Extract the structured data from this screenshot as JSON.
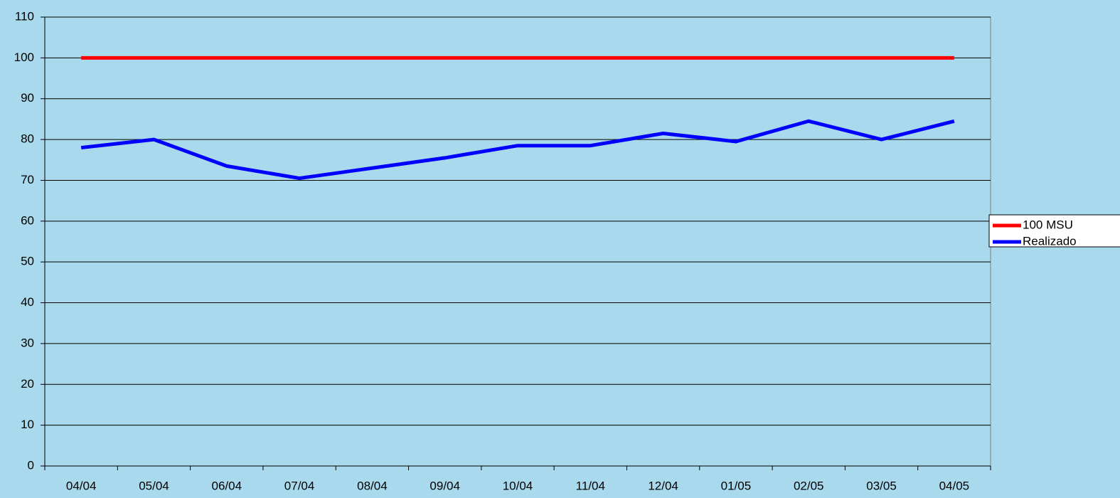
{
  "chart_data": {
    "type": "line",
    "categories": [
      "04/04",
      "05/04",
      "06/04",
      "07/04",
      "08/04",
      "09/04",
      "10/04",
      "11/04",
      "12/04",
      "01/05",
      "02/05",
      "03/05",
      "04/05"
    ],
    "series": [
      {
        "name": "100 MSU",
        "color": "#ff0000",
        "values": [
          100,
          100,
          100,
          100,
          100,
          100,
          100,
          100,
          100,
          100,
          100,
          100,
          100
        ]
      },
      {
        "name": "Realizado",
        "color": "#0000ff",
        "values": [
          78,
          80,
          73.5,
          70.5,
          73,
          75.5,
          78.5,
          78.5,
          81.5,
          79.5,
          84.5,
          80,
          84.5
        ]
      }
    ],
    "ylim": [
      0,
      110
    ],
    "yticks": [
      0,
      10,
      20,
      30,
      40,
      50,
      60,
      70,
      80,
      90,
      100,
      110
    ],
    "grid": true,
    "legend": "right"
  }
}
